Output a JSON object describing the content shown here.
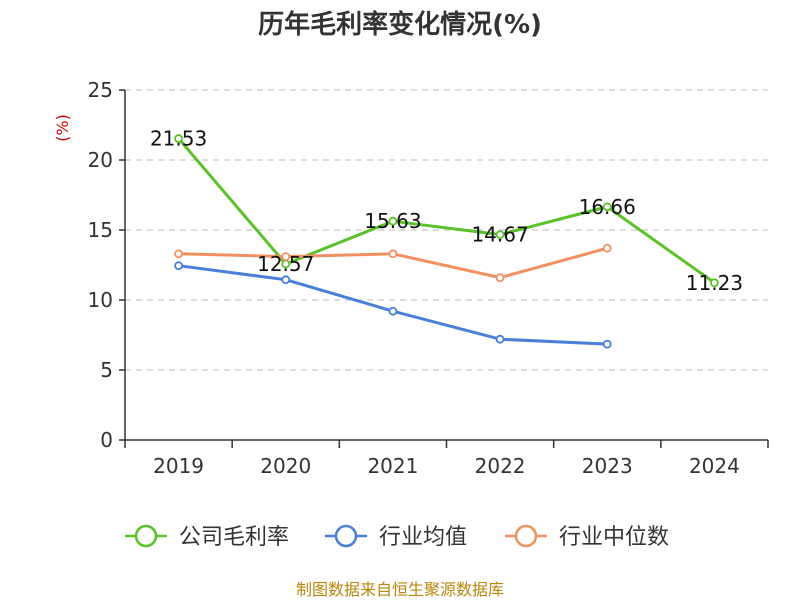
{
  "chart_data": {
    "type": "line",
    "title": "历年毛利率变化情况(%)",
    "ylabel": "(%)",
    "xlabel": "",
    "categories": [
      "2019",
      "2020",
      "2021",
      "2022",
      "2023",
      "2024"
    ],
    "ylim": [
      0,
      25
    ],
    "yticks": [
      "0",
      "5",
      "10",
      "15",
      "20",
      "25"
    ],
    "grid": true,
    "legend_position": "bottom",
    "series": [
      {
        "name": "公司毛利率",
        "color": "#5ac229",
        "values": [
          21.53,
          12.57,
          15.63,
          14.67,
          16.66,
          11.23
        ],
        "labels": [
          "21.53",
          "12.57",
          "15.63",
          "14.67",
          "16.66",
          "11.23"
        ]
      },
      {
        "name": "行业均值",
        "color": "#4a7fd9",
        "values": [
          12.45,
          11.45,
          9.2,
          7.2,
          6.85,
          null
        ]
      },
      {
        "name": "行业中位数",
        "color": "#f39060",
        "values": [
          13.3,
          13.1,
          13.3,
          11.6,
          13.7,
          null
        ]
      }
    ]
  },
  "source": "制图数据来自恒生聚源数据库"
}
